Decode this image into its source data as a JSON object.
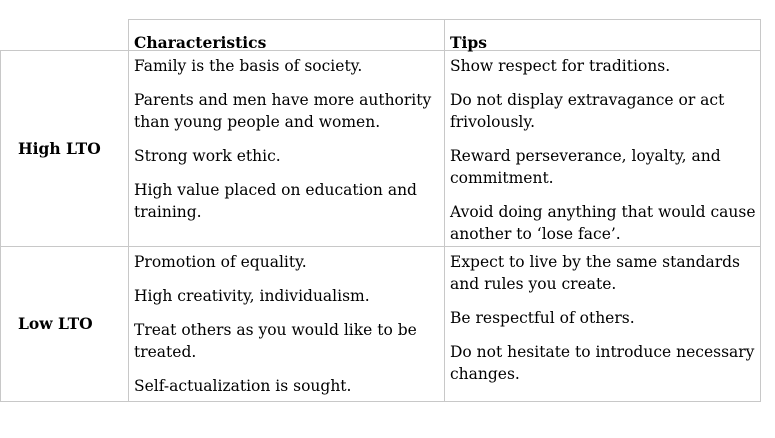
{
  "table": {
    "headers": {
      "characteristics": "Characteristics",
      "tips": "Tips"
    },
    "rows": [
      {
        "label": "High LTO",
        "characteristics": [
          "Family is the basis of society.",
          "Parents and men have more authority than young people and women.",
          "Strong work ethic.",
          "High value placed on education and training."
        ],
        "tips": [
          "Show respect for traditions.",
          "Do not display extravagance or act frivolously.",
          "Reward perseverance, loyalty, and commitment.",
          "Avoid doing anything that would cause another to ‘lose face’."
        ]
      },
      {
        "label": "Low LTO",
        "characteristics": [
          "Promotion of equality.",
          "High creativity, individualism.",
          "Treat others as you would like to be treated.",
          "Self-actualization is sought."
        ],
        "tips": [
          "Expect to live by the same standards and rules you create.",
          "Be respectful of others.",
          "Do not hesitate to introduce necessary changes."
        ]
      }
    ]
  }
}
